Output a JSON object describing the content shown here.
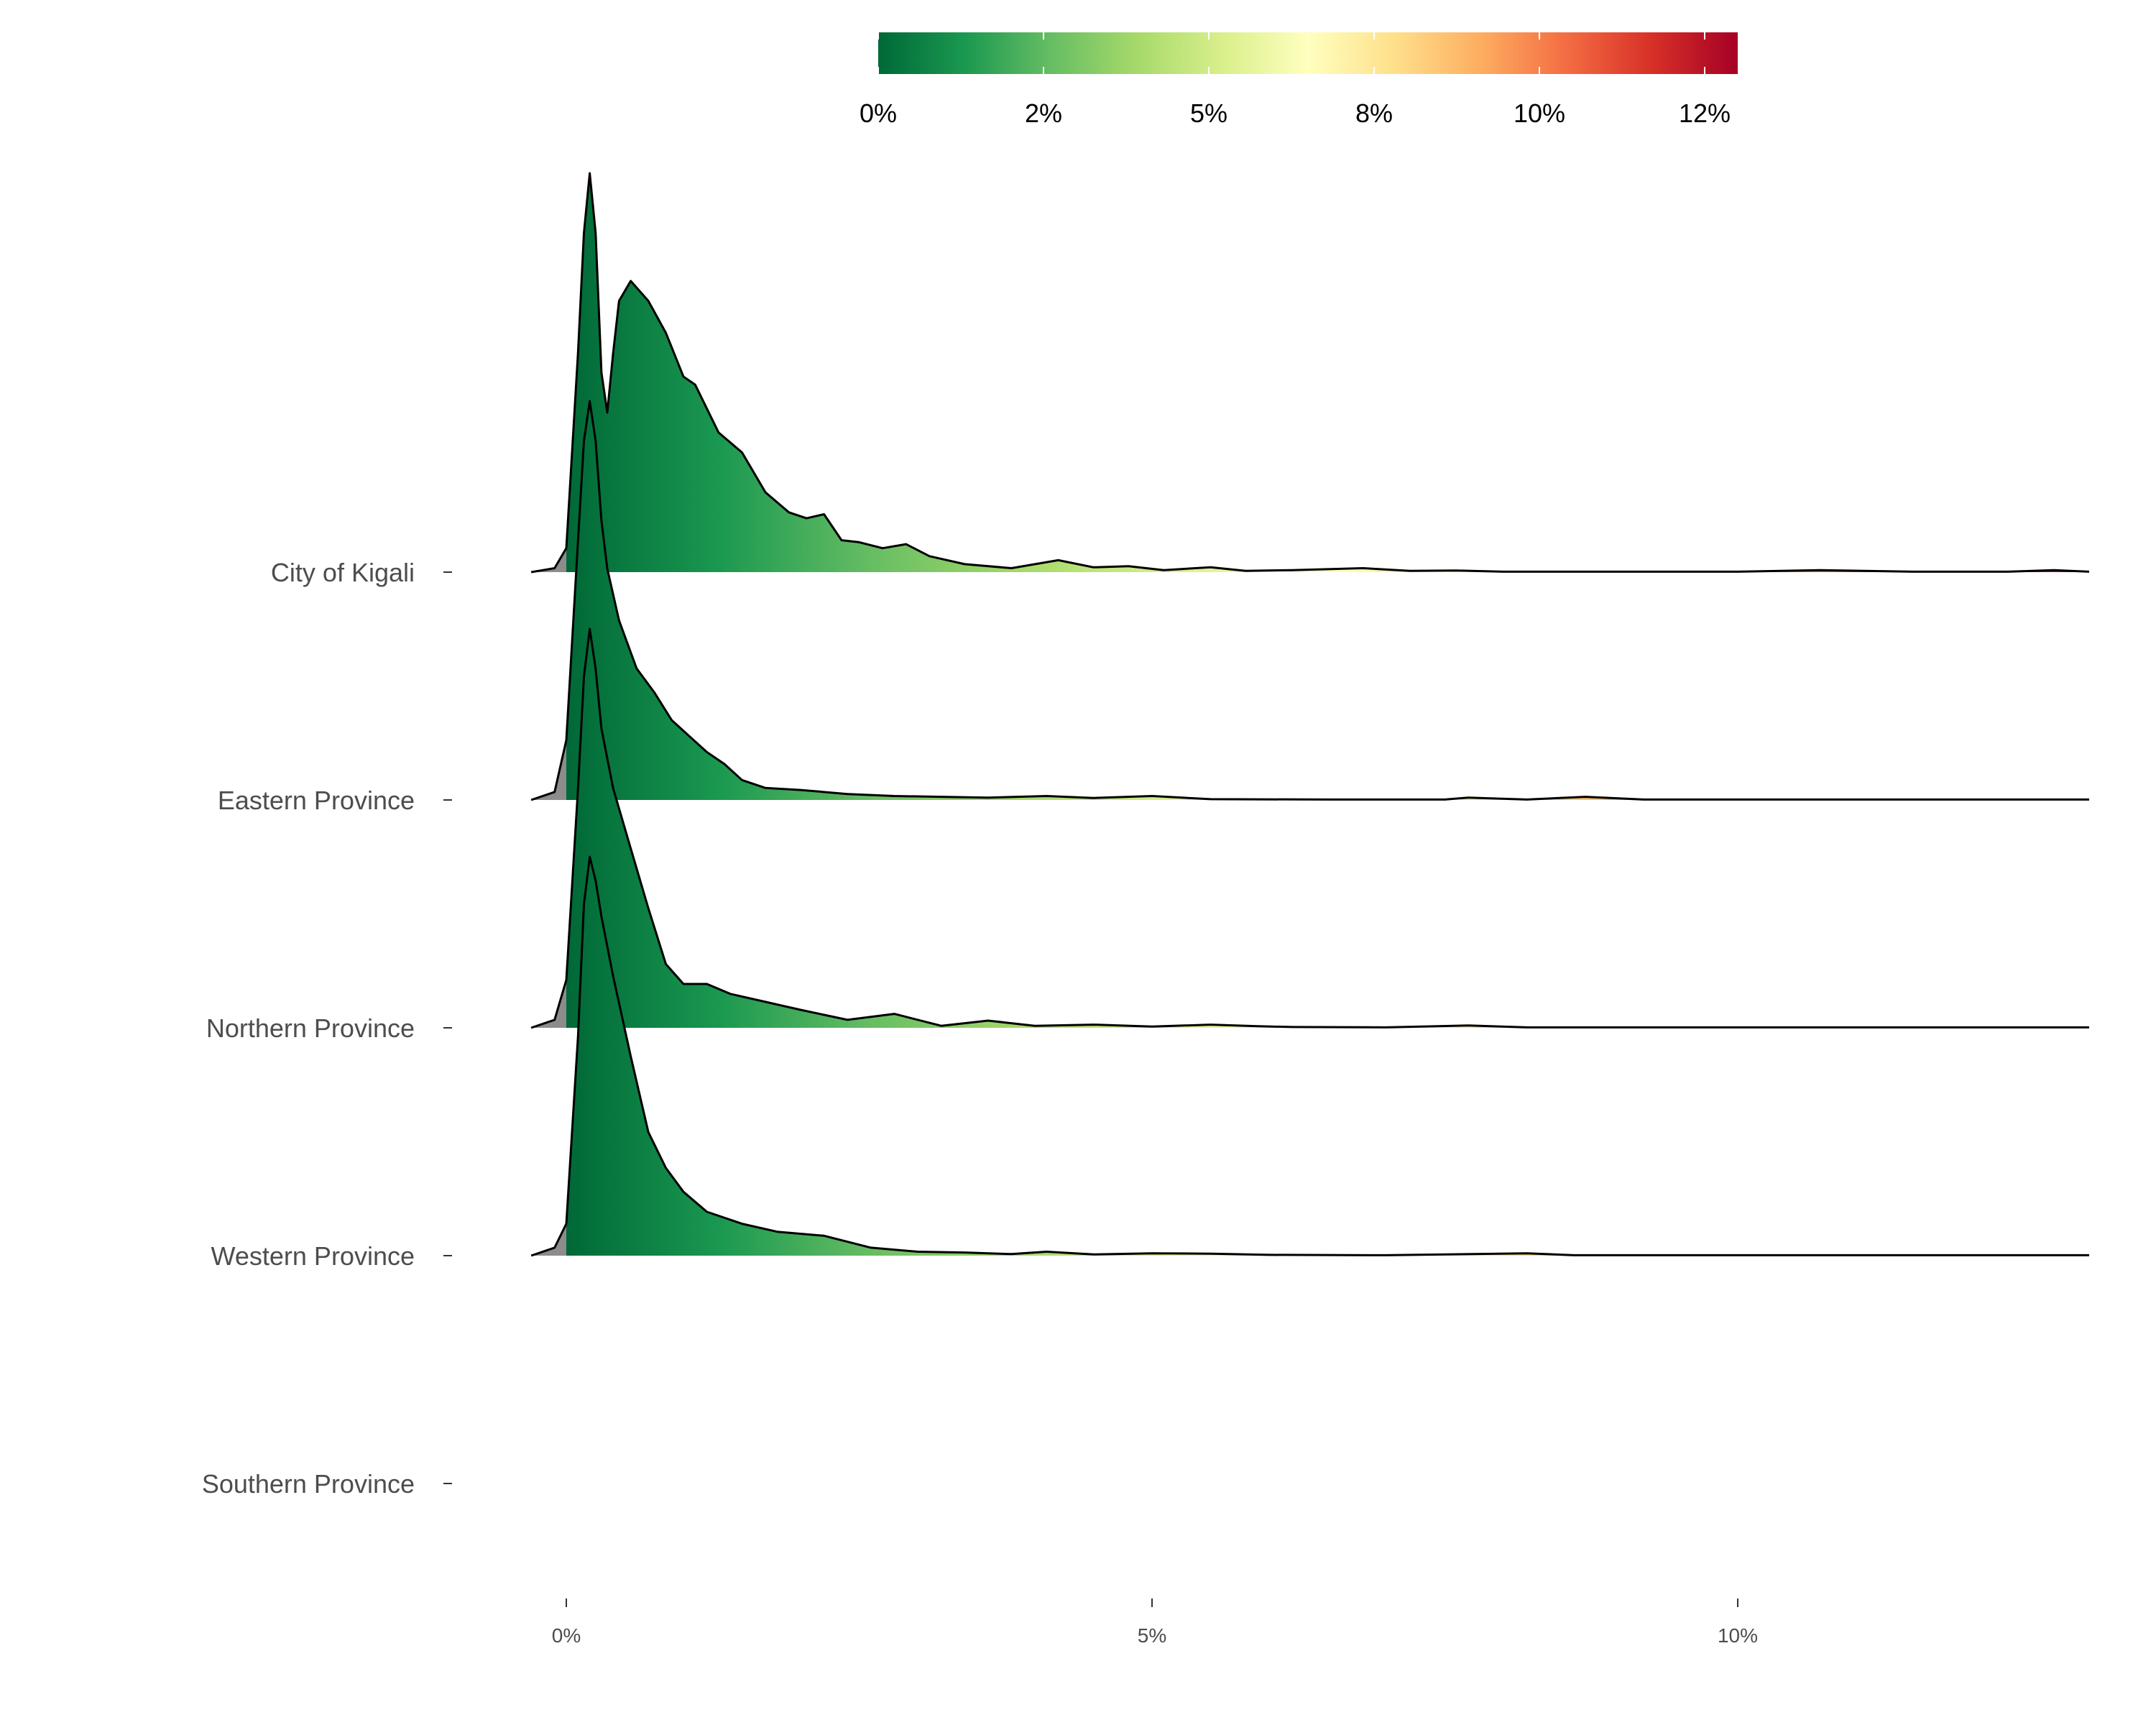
{
  "chart_data": {
    "type": "ridgeline",
    "categories": [
      "City of Kigali",
      "Eastern Province",
      "Northern Province",
      "Western Province",
      "Southern Province"
    ],
    "xlim": [
      -0.3,
      13
    ],
    "x_ticks": [
      {
        "value": 0,
        "label": "0%"
      },
      {
        "value": 5,
        "label": "5%"
      },
      {
        "value": 10,
        "label": "10%"
      }
    ],
    "legend": {
      "position": "top",
      "range": [
        0,
        13
      ],
      "ticks": [
        {
          "value": 0,
          "label": "0%"
        },
        {
          "value": 2.5,
          "label": "2%"
        },
        {
          "value": 5,
          "label": "5%"
        },
        {
          "value": 7.5,
          "label": "8%"
        },
        {
          "value": 10,
          "label": "10%"
        },
        {
          "value": 12.5,
          "label": "12%"
        }
      ],
      "colors": [
        "#006837",
        "#1a9850",
        "#66bd63",
        "#a6d96a",
        "#d9ef8b",
        "#ffffbf",
        "#fee08b",
        "#fdae61",
        "#f46d43",
        "#d73027",
        "#a50026"
      ]
    },
    "negative_fill": "#8c8c8c",
    "series": [
      {
        "name": "City of Kigali",
        "points": [
          [
            -0.3,
            0
          ],
          [
            -0.1,
            0.01
          ],
          [
            0,
            0.06
          ],
          [
            0.1,
            0.55
          ],
          [
            0.15,
            0.85
          ],
          [
            0.2,
            1.0
          ],
          [
            0.25,
            0.85
          ],
          [
            0.3,
            0.5
          ],
          [
            0.35,
            0.4
          ],
          [
            0.4,
            0.55
          ],
          [
            0.45,
            0.68
          ],
          [
            0.55,
            0.73
          ],
          [
            0.7,
            0.68
          ],
          [
            0.85,
            0.6
          ],
          [
            1.0,
            0.49
          ],
          [
            1.1,
            0.47
          ],
          [
            1.3,
            0.35
          ],
          [
            1.5,
            0.3
          ],
          [
            1.7,
            0.2
          ],
          [
            1.9,
            0.15
          ],
          [
            2.05,
            0.135
          ],
          [
            2.2,
            0.145
          ],
          [
            2.35,
            0.08
          ],
          [
            2.5,
            0.075
          ],
          [
            2.7,
            0.06
          ],
          [
            2.9,
            0.07
          ],
          [
            3.1,
            0.04
          ],
          [
            3.4,
            0.02
          ],
          [
            3.8,
            0.01
          ],
          [
            4.2,
            0.03
          ],
          [
            4.5,
            0.012
          ],
          [
            4.8,
            0.015
          ],
          [
            5.1,
            0.005
          ],
          [
            5.5,
            0.012
          ],
          [
            5.8,
            0.003
          ],
          [
            6.2,
            0.005
          ],
          [
            6.8,
            0.01
          ],
          [
            7.2,
            0.003
          ],
          [
            7.6,
            0.004
          ],
          [
            8,
            0.001
          ],
          [
            9,
            0.001
          ],
          [
            10,
            0.001
          ],
          [
            10.7,
            0.005
          ],
          [
            11.5,
            0.001
          ],
          [
            12.3,
            0.001
          ],
          [
            12.7,
            0.005
          ],
          [
            13,
            0.001
          ]
        ]
      },
      {
        "name": "Eastern Province",
        "points": [
          [
            -0.3,
            0
          ],
          [
            -0.1,
            0.02
          ],
          [
            0,
            0.15
          ],
          [
            0.1,
            0.65
          ],
          [
            0.15,
            0.9
          ],
          [
            0.2,
            1.0
          ],
          [
            0.25,
            0.9
          ],
          [
            0.3,
            0.7
          ],
          [
            0.35,
            0.58
          ],
          [
            0.45,
            0.45
          ],
          [
            0.6,
            0.33
          ],
          [
            0.75,
            0.27
          ],
          [
            0.9,
            0.2
          ],
          [
            1.05,
            0.16
          ],
          [
            1.2,
            0.12
          ],
          [
            1.35,
            0.09
          ],
          [
            1.5,
            0.05
          ],
          [
            1.7,
            0.03
          ],
          [
            2.0,
            0.025
          ],
          [
            2.4,
            0.015
          ],
          [
            2.8,
            0.01
          ],
          [
            3.2,
            0.008
          ],
          [
            3.6,
            0.006
          ],
          [
            4.1,
            0.01
          ],
          [
            4.5,
            0.005
          ],
          [
            5.0,
            0.01
          ],
          [
            5.5,
            0.002
          ],
          [
            6.5,
            0.001
          ],
          [
            7.5,
            0.001
          ],
          [
            7.7,
            0.006
          ],
          [
            8.2,
            0.001
          ],
          [
            8.7,
            0.008
          ],
          [
            9.2,
            0.001
          ],
          [
            13,
            0.001
          ]
        ]
      },
      {
        "name": "Northern Province",
        "points": [
          [
            -0.3,
            0
          ],
          [
            -0.1,
            0.02
          ],
          [
            0,
            0.12
          ],
          [
            0.1,
            0.6
          ],
          [
            0.15,
            0.88
          ],
          [
            0.2,
            1.0
          ],
          [
            0.25,
            0.9
          ],
          [
            0.3,
            0.75
          ],
          [
            0.4,
            0.6
          ],
          [
            0.55,
            0.45
          ],
          [
            0.7,
            0.3
          ],
          [
            0.85,
            0.16
          ],
          [
            1.0,
            0.11
          ],
          [
            1.2,
            0.11
          ],
          [
            1.4,
            0.085
          ],
          [
            1.7,
            0.065
          ],
          [
            2.0,
            0.045
          ],
          [
            2.4,
            0.02
          ],
          [
            2.8,
            0.035
          ],
          [
            3.2,
            0.005
          ],
          [
            3.6,
            0.018
          ],
          [
            4.0,
            0.005
          ],
          [
            4.5,
            0.008
          ],
          [
            5.0,
            0.003
          ],
          [
            5.5,
            0.008
          ],
          [
            5.9,
            0.004
          ],
          [
            6.2,
            0.002
          ],
          [
            7.0,
            0.001
          ],
          [
            7.7,
            0.006
          ],
          [
            8.2,
            0.001
          ],
          [
            13,
            0.001
          ]
        ]
      },
      {
        "name": "Western Province",
        "points": [
          [
            -0.3,
            0
          ],
          [
            -0.1,
            0.02
          ],
          [
            0,
            0.08
          ],
          [
            0.1,
            0.55
          ],
          [
            0.15,
            0.88
          ],
          [
            0.2,
            1.0
          ],
          [
            0.25,
            0.94
          ],
          [
            0.3,
            0.85
          ],
          [
            0.4,
            0.7
          ],
          [
            0.55,
            0.5
          ],
          [
            0.7,
            0.31
          ],
          [
            0.85,
            0.22
          ],
          [
            1.0,
            0.16
          ],
          [
            1.2,
            0.11
          ],
          [
            1.5,
            0.08
          ],
          [
            1.8,
            0.06
          ],
          [
            2.2,
            0.05
          ],
          [
            2.6,
            0.02
          ],
          [
            3.0,
            0.01
          ],
          [
            3.4,
            0.008
          ],
          [
            3.8,
            0.004
          ],
          [
            4.1,
            0.01
          ],
          [
            4.5,
            0.003
          ],
          [
            5.0,
            0.006
          ],
          [
            5.5,
            0.005
          ],
          [
            6.0,
            0.002
          ],
          [
            7.0,
            0.001
          ],
          [
            8.2,
            0.006
          ],
          [
            8.6,
            0.001
          ],
          [
            13,
            0.001
          ]
        ]
      },
      {
        "name": "Southern Province",
        "points": []
      }
    ]
  }
}
